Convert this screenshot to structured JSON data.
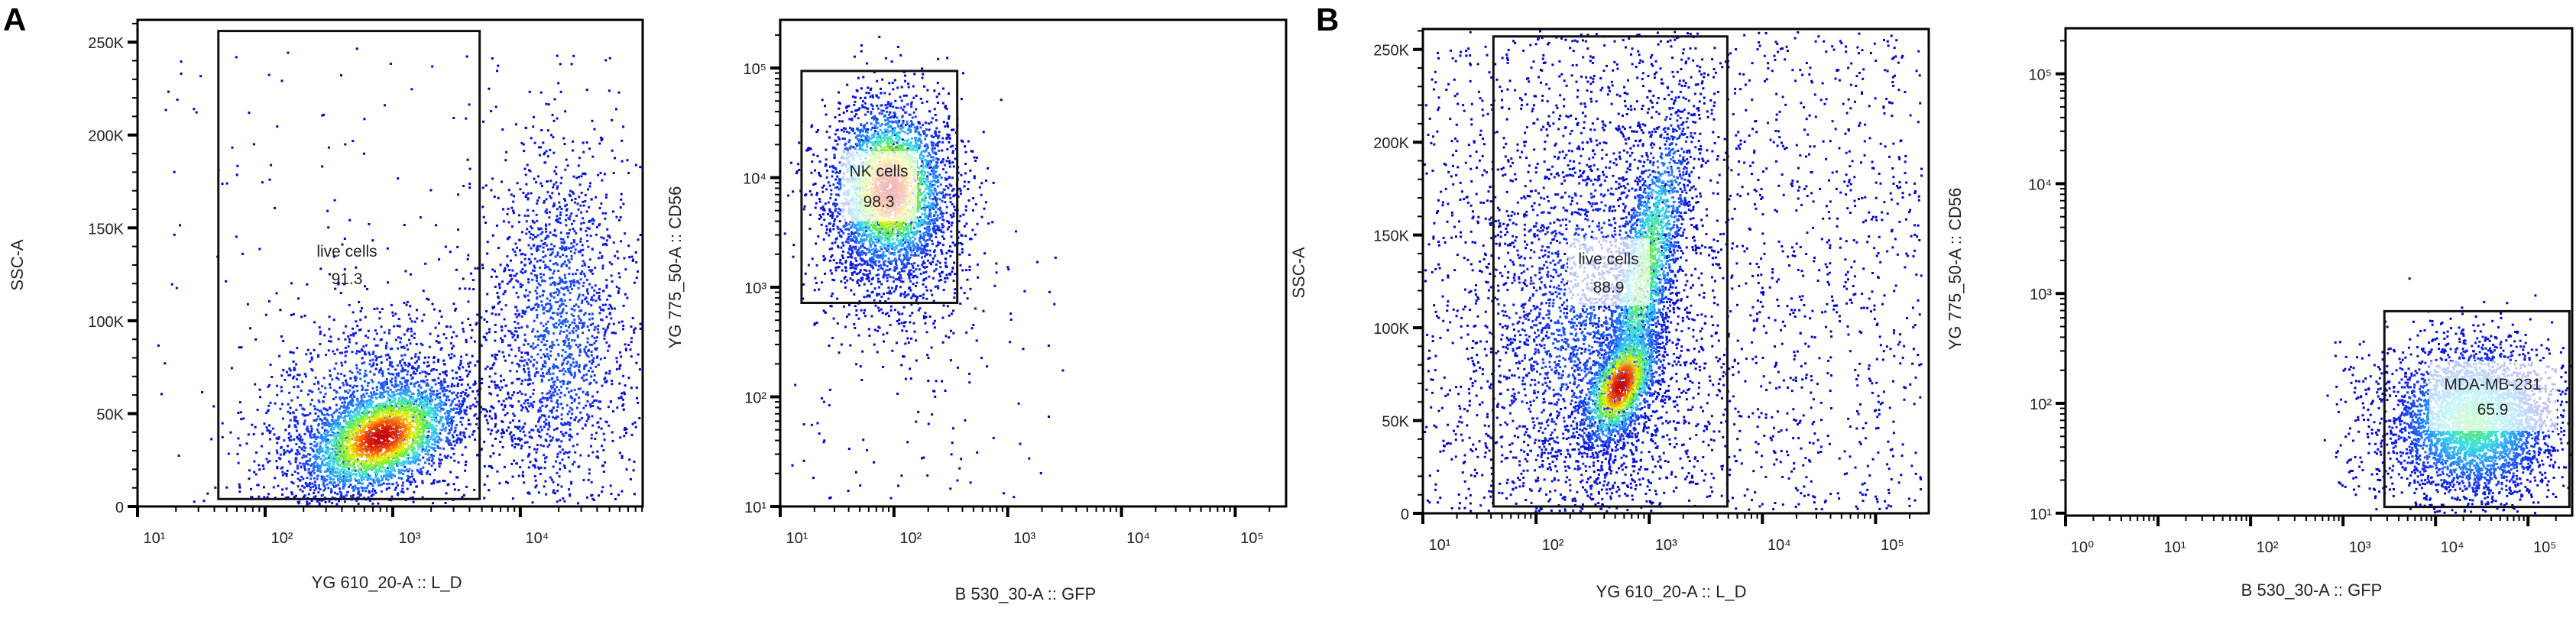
{
  "panel_labels": {
    "a": "A",
    "b": "B"
  },
  "chart_data": [
    {
      "type": "scatter",
      "panel": "A",
      "xlabel": "YG 610_20-A :: L_D",
      "ylabel": "SSC-A",
      "xscale": "log",
      "yscale": "linear",
      "xlim": [
        10,
        91000
      ],
      "ylim": [
        0,
        262000
      ],
      "x_ticks": [
        10,
        100,
        1000,
        10000
      ],
      "x_tick_labels": [
        "10¹",
        "10²",
        "10³",
        "10⁴"
      ],
      "y_ticks": [
        0,
        50000,
        100000,
        150000,
        200000,
        250000
      ],
      "y_tick_labels": [
        "0",
        "50K",
        "100K",
        "150K",
        "200K",
        "250K"
      ],
      "gate": {
        "name": "live cells",
        "value": "91.3",
        "x": [
          43,
          4800
        ],
        "y": [
          4000,
          256000
        ]
      },
      "populations": [
        {
          "center": [
            800,
            38000
          ],
          "sd": [
            0.32,
            16000
          ],
          "corr": 0.4,
          "n": 3000,
          "peak": 1.0
        },
        {
          "center": [
            600,
            50000
          ],
          "sd": [
            0.5,
            30000
          ],
          "corr": 0.3,
          "n": 1200,
          "peak": 0.25
        },
        {
          "center": [
            20000,
            95000
          ],
          "sd": [
            0.3,
            55000
          ],
          "corr": 0,
          "n": 1800,
          "peak": 0.2
        },
        {
          "uniform": true,
          "x": [
            15,
            5000
          ],
          "y": [
            0,
            250000
          ],
          "n": 120,
          "peak": 0.02
        }
      ]
    },
    {
      "type": "scatter",
      "panel": "A",
      "xlabel": "B 530_30-A :: GFP",
      "ylabel": "YG 775_50-A :: CD56",
      "xscale": "log",
      "yscale": "log",
      "xlim": [
        10,
        280000
      ],
      "ylim": [
        10,
        275000
      ],
      "x_ticks": [
        10,
        100,
        1000,
        10000,
        100000
      ],
      "x_tick_labels": [
        "10¹",
        "10²",
        "10³",
        "10⁴",
        "10⁵"
      ],
      "y_ticks": [
        10,
        100,
        1000,
        10000,
        100000
      ],
      "y_tick_labels": [
        "10¹",
        "10²",
        "10³",
        "10⁴",
        "10⁵"
      ],
      "gate": {
        "name": "NK cells",
        "value": "98.3",
        "x": [
          15.4,
          360
        ],
        "y": [
          720,
          94000
        ]
      },
      "populations": [
        {
          "center": [
            90,
            8000
          ],
          "sd": [
            0.25,
            0.38
          ],
          "corr": 0,
          "n": 3000,
          "peak": 1.0
        },
        {
          "center": [
            100,
            4000
          ],
          "sd": [
            0.35,
            0.55
          ],
          "corr": 0,
          "n": 1200,
          "peak": 0.2
        },
        {
          "uniform": true,
          "x": [
            12,
            3000
          ],
          "y": [
            12,
            2000
          ],
          "n": 120,
          "peak": 0.02
        }
      ]
    },
    {
      "type": "scatter",
      "panel": "B",
      "xlabel": "YG 610_20-A :: L_D",
      "ylabel": "SSC-A",
      "xscale": "log",
      "yscale": "linear",
      "xlim": [
        10,
        295000
      ],
      "ylim": [
        0,
        261000
      ],
      "x_ticks": [
        10,
        100,
        1000,
        10000,
        100000
      ],
      "x_tick_labels": [
        "10¹",
        "10²",
        "10³",
        "10⁴",
        "10⁵"
      ],
      "y_ticks": [
        0,
        50000,
        100000,
        150000,
        200000,
        250000
      ],
      "y_tick_labels": [
        "0",
        "50K",
        "100K",
        "150K",
        "200K",
        "250K"
      ],
      "gate": {
        "name": "live cells",
        "value": "88.9",
        "x": [
          42,
          4900
        ],
        "y": [
          3700,
          257000
        ]
      },
      "populations": [
        {
          "center": [
            550,
            70000
          ],
          "sd": [
            0.18,
            17000
          ],
          "corr": 0.5,
          "n": 1500,
          "peak": 1.0
        },
        {
          "center": [
            900,
            130000
          ],
          "sd": [
            0.2,
            45000
          ],
          "corr": 0.7,
          "n": 2200,
          "peak": 0.6
        },
        {
          "center": [
            300,
            100000
          ],
          "sd": [
            0.5,
            60000
          ],
          "corr": 0,
          "n": 2500,
          "peak": 0.2
        },
        {
          "uniform": true,
          "x": [
            10,
            250000
          ],
          "y": [
            0,
            260000
          ],
          "n": 2000,
          "peak": 0.02
        }
      ]
    },
    {
      "type": "scatter",
      "panel": "B",
      "xlabel": "B 530_30-A :: GFP",
      "ylabel": "YG 775_50-A :: CD56",
      "xscale": "log",
      "yscale": "log",
      "xlim": [
        1,
        300000
      ],
      "ylim": [
        9.5,
        260000
      ],
      "x_ticks": [
        1,
        10,
        100,
        1000,
        10000,
        100000
      ],
      "x_tick_labels": [
        "10⁰",
        "10¹",
        "10²",
        "10³",
        "10⁴",
        "10⁵"
      ],
      "y_ticks": [
        10,
        100,
        1000,
        10000,
        100000
      ],
      "y_tick_labels": [
        "10¹",
        "10²",
        "10³",
        "10⁴",
        "10⁵"
      ],
      "gate": {
        "name": "MDA-MB-231",
        "value": "65.9",
        "x": [
          2800,
          280000
        ],
        "y": [
          11.4,
          690
        ]
      },
      "populations": [
        {
          "center": [
            25000,
            70
          ],
          "sd": [
            0.45,
            0.35
          ],
          "corr": 0,
          "n": 4000,
          "peak": 0.55
        },
        {
          "uniform": true,
          "x": [
            800,
            3000
          ],
          "y": [
            15,
            400
          ],
          "n": 80,
          "peak": 0.02
        }
      ]
    }
  ]
}
